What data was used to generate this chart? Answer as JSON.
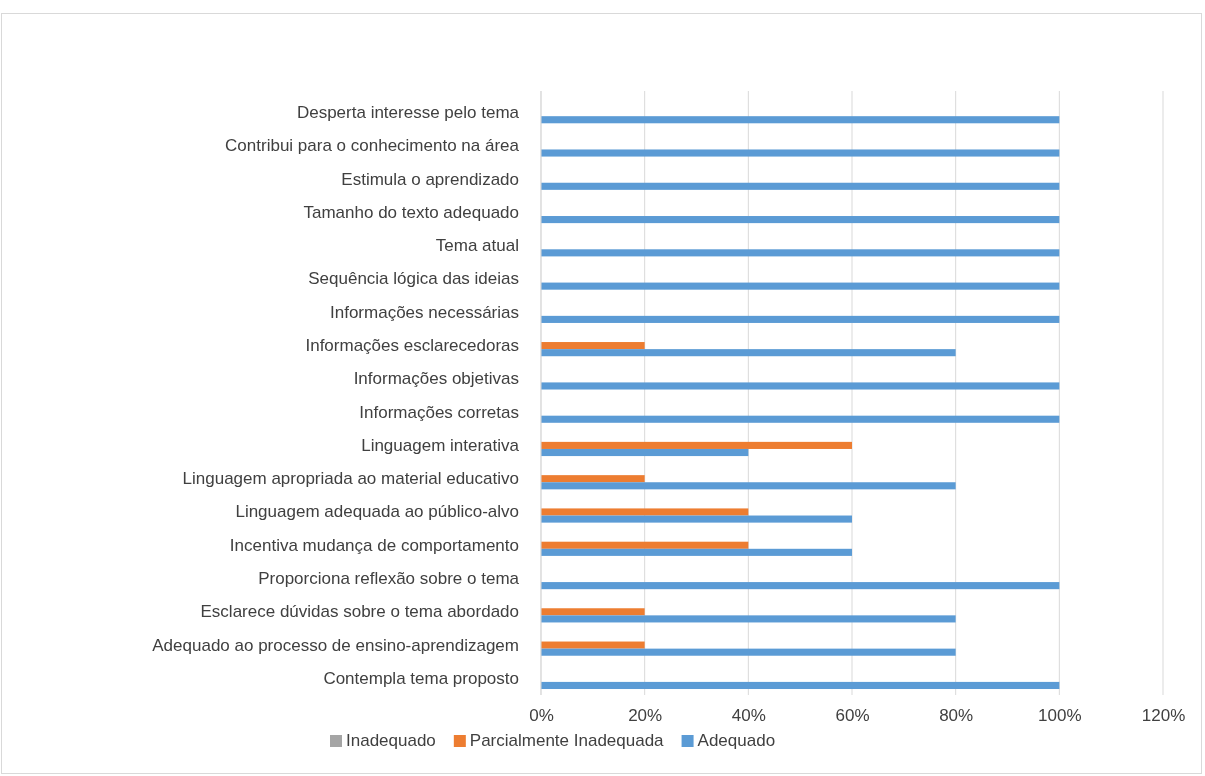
{
  "chart_data": {
    "type": "bar",
    "orientation": "horizontal",
    "categories": [
      "Desperta interesse pelo tema",
      "Contribui para o conhecimento na área",
      "Estimula o aprendizado",
      "Tamanho do texto adequado",
      "Tema atual",
      "Sequência lógica das ideias",
      "Informações necessárias",
      "Informações esclarecedoras",
      "Informações objetivas",
      "Informações corretas",
      "Linguagem interativa",
      "Linguagem apropriada ao material educativo",
      "Linguagem adequada ao público-alvo",
      "Incentiva mudança de comportamento",
      "Proporciona reflexão sobre o tema",
      "Esclarece dúvidas sobre o tema abordado",
      "Adequado ao processo de ensino-aprendizagem",
      "Contempla tema proposto"
    ],
    "series": [
      {
        "name": "Inadequado",
        "color": "#a5a5a5",
        "values": [
          0,
          0,
          0,
          0,
          0,
          0,
          0,
          0,
          0,
          0,
          0,
          0,
          0,
          0,
          0,
          0,
          0,
          0
        ]
      },
      {
        "name": "Parcialmente Inadequada",
        "color": "#ed7d31",
        "values": [
          0,
          0,
          0,
          0,
          0,
          0,
          0,
          20,
          0,
          0,
          60,
          20,
          40,
          40,
          0,
          20,
          20,
          0
        ]
      },
      {
        "name": "Adequado",
        "color": "#5b9bd5",
        "values": [
          100,
          100,
          100,
          100,
          100,
          100,
          100,
          80,
          100,
          100,
          40,
          80,
          60,
          60,
          100,
          80,
          80,
          100
        ]
      }
    ],
    "xlim": [
      0,
      120
    ],
    "xticks": [
      {
        "value": 0,
        "label": "0%"
      },
      {
        "value": 20,
        "label": "20%"
      },
      {
        "value": 40,
        "label": "40%"
      },
      {
        "value": 60,
        "label": "60%"
      },
      {
        "value": 80,
        "label": "80%"
      },
      {
        "value": 100,
        "label": "100%"
      },
      {
        "value": 120,
        "label": "120%"
      }
    ],
    "grid": "x",
    "legend": "bottom"
  }
}
